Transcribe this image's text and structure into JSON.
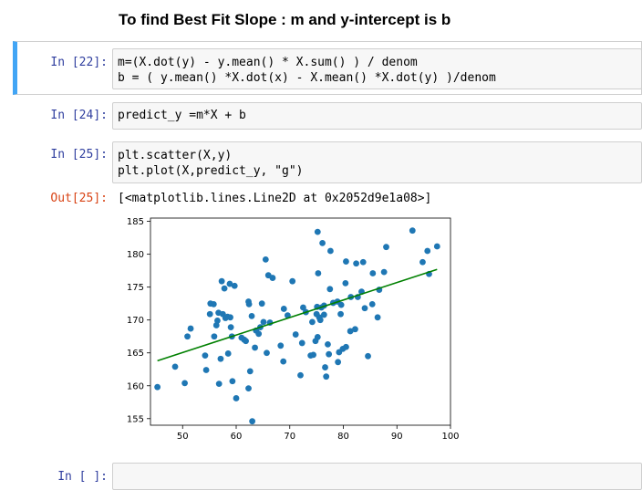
{
  "markdown": {
    "heading": "To find Best Fit Slope : m and y-intercept is b"
  },
  "cells": [
    {
      "prompt": "In [22]:",
      "lines": [
        "m=(X.dot(y) - y.mean() * X.sum() ) / denom",
        "b = ( y.mean() *X.dot(x) - X.mean() *X.dot(y) )/denom"
      ]
    },
    {
      "prompt": "In [24]:",
      "lines": [
        "predict_y =m*X + b"
      ]
    },
    {
      "prompt": "In [25]:",
      "lines": [
        "plt.scatter(X,y)",
        "plt.plot(X,predict_y, \"g\")"
      ]
    },
    {
      "prompt": "In [ ]:",
      "lines": []
    }
  ],
  "output": {
    "prompt": "Out[25]:",
    "text": "[<matplotlib.lines.Line2D at 0x2052d9e1a08>]"
  },
  "chart_data": {
    "type": "scatter",
    "title": "",
    "xlabel": "",
    "ylabel": "",
    "xlim": [
      44,
      100
    ],
    "ylim": [
      154,
      185.5
    ],
    "xticks": [
      50,
      60,
      70,
      80,
      90,
      100
    ],
    "yticks": [
      155,
      160,
      165,
      170,
      175,
      180,
      185
    ],
    "grid": false,
    "point_color": "#1f77b4",
    "line_color": "#008000",
    "points": [
      [
        45.3,
        159.8
      ],
      [
        48.6,
        162.9
      ],
      [
        50.4,
        160.4
      ],
      [
        50.9,
        167.5
      ],
      [
        51.5,
        168.7
      ],
      [
        54.2,
        164.6
      ],
      [
        54.4,
        162.4
      ],
      [
        55.1,
        170.9
      ],
      [
        55.2,
        172.5
      ],
      [
        55.8,
        172.4
      ],
      [
        55.9,
        167.5
      ],
      [
        56.3,
        169.2
      ],
      [
        56.5,
        169.9
      ],
      [
        56.7,
        171.1
      ],
      [
        56.8,
        160.3
      ],
      [
        57.1,
        164.1
      ],
      [
        57.3,
        175.9
      ],
      [
        57.5,
        170.9
      ],
      [
        57.8,
        174.8
      ],
      [
        58.0,
        170.3
      ],
      [
        58.4,
        170.5
      ],
      [
        58.5,
        164.9
      ],
      [
        58.8,
        175.5
      ],
      [
        58.9,
        170.4
      ],
      [
        59.0,
        168.9
      ],
      [
        59.2,
        167.5
      ],
      [
        59.3,
        160.7
      ],
      [
        59.7,
        175.2
      ],
      [
        60.0,
        158.1
      ],
      [
        61.0,
        167.3
      ],
      [
        61.5,
        167.0
      ],
      [
        61.8,
        166.8
      ],
      [
        62.3,
        172.8
      ],
      [
        62.4,
        172.4
      ],
      [
        62.9,
        170.6
      ],
      [
        62.3,
        159.6
      ],
      [
        62.6,
        162.2
      ],
      [
        63.0,
        154.6
      ],
      [
        63.5,
        165.8
      ],
      [
        63.7,
        168.4
      ],
      [
        64.2,
        167.9
      ],
      [
        64.5,
        168.9
      ],
      [
        64.8,
        172.5
      ],
      [
        65.1,
        169.7
      ],
      [
        65.5,
        179.2
      ],
      [
        65.7,
        165.0
      ],
      [
        66.0,
        176.8
      ],
      [
        66.3,
        169.6
      ],
      [
        66.8,
        176.4
      ],
      [
        68.3,
        166.1
      ],
      [
        68.8,
        163.7
      ],
      [
        68.9,
        171.7
      ],
      [
        69.6,
        170.7
      ],
      [
        70.5,
        175.9
      ],
      [
        71.1,
        167.8
      ],
      [
        72.0,
        161.6
      ],
      [
        72.3,
        166.5
      ],
      [
        72.5,
        171.9
      ],
      [
        73.0,
        171.2
      ],
      [
        73.9,
        164.6
      ],
      [
        74.2,
        169.7
      ],
      [
        74.4,
        164.7
      ],
      [
        74.8,
        166.8
      ],
      [
        75.0,
        170.9
      ],
      [
        75.1,
        172.0
      ],
      [
        75.2,
        167.4
      ],
      [
        75.2,
        183.4
      ],
      [
        75.3,
        177.1
      ],
      [
        75.5,
        170.4
      ],
      [
        75.7,
        170.0
      ],
      [
        75.9,
        171.9
      ],
      [
        76.1,
        181.7
      ],
      [
        76.4,
        172.2
      ],
      [
        76.4,
        170.8
      ],
      [
        76.6,
        162.8
      ],
      [
        76.8,
        161.4
      ],
      [
        77.1,
        166.3
      ],
      [
        77.3,
        164.8
      ],
      [
        77.5,
        174.7
      ],
      [
        77.6,
        180.5
      ],
      [
        78.1,
        172.6
      ],
      [
        78.9,
        172.8
      ],
      [
        79.0,
        163.6
      ],
      [
        79.2,
        165.1
      ],
      [
        79.5,
        170.9
      ],
      [
        79.6,
        172.3
      ],
      [
        79.9,
        165.6
      ],
      [
        80.4,
        175.6
      ],
      [
        80.5,
        165.9
      ],
      [
        80.5,
        178.9
      ],
      [
        81.3,
        168.3
      ],
      [
        81.4,
        173.5
      ],
      [
        82.2,
        168.6
      ],
      [
        82.4,
        178.6
      ],
      [
        82.7,
        173.5
      ],
      [
        83.4,
        174.3
      ],
      [
        83.7,
        178.8
      ],
      [
        84.0,
        171.8
      ],
      [
        84.6,
        164.5
      ],
      [
        85.4,
        172.4
      ],
      [
        85.5,
        177.1
      ],
      [
        86.4,
        170.4
      ],
      [
        86.7,
        174.6
      ],
      [
        87.6,
        177.3
      ],
      [
        88.0,
        181.1
      ],
      [
        92.9,
        183.6
      ],
      [
        94.8,
        178.8
      ],
      [
        95.7,
        180.5
      ],
      [
        96.0,
        177.0
      ],
      [
        97.5,
        181.2
      ]
    ],
    "fit_line": {
      "x": [
        45.3,
        97.5
      ],
      "y": [
        163.8,
        177.7
      ]
    }
  }
}
